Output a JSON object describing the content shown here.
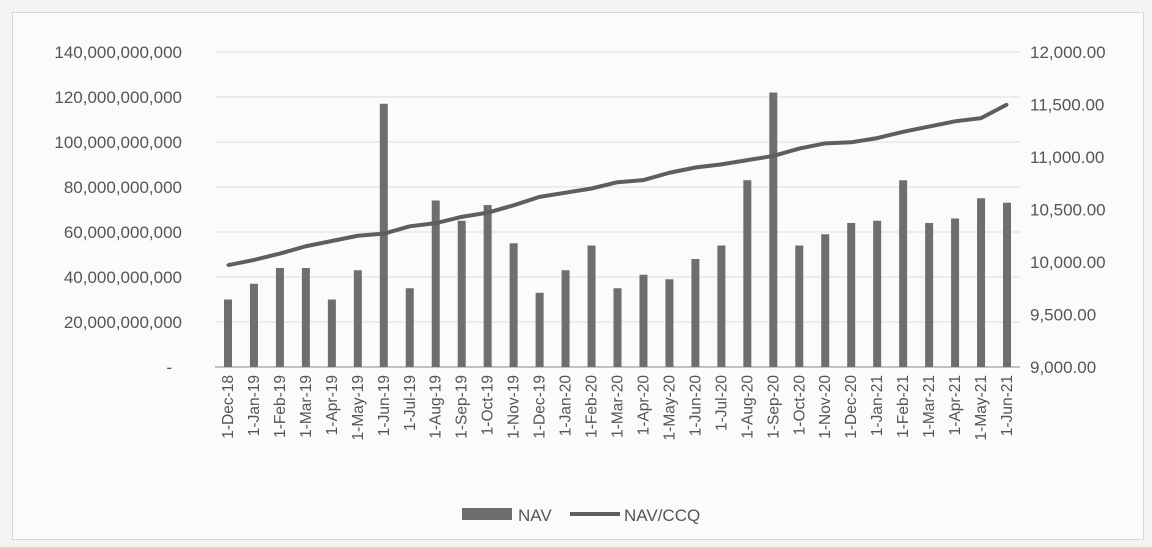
{
  "chart_data": {
    "type": "bar+line",
    "categories": [
      "1-Dec-18",
      "1-Jan-19",
      "1-Feb-19",
      "1-Mar-19",
      "1-Apr-19",
      "1-May-19",
      "1-Jun-19",
      "1-Jul-19",
      "1-Aug-19",
      "1-Sep-19",
      "1-Oct-19",
      "1-Nov-19",
      "1-Dec-19",
      "1-Jan-20",
      "1-Feb-20",
      "1-Mar-20",
      "1-Apr-20",
      "1-May-20",
      "1-Jun-20",
      "1-Jul-20",
      "1-Aug-20",
      "1-Sep-20",
      "1-Oct-20",
      "1-Nov-20",
      "1-Dec-20",
      "1-Jan-21",
      "1-Feb-21",
      "1-Mar-21",
      "1-Apr-21",
      "1-May-21",
      "1-Jun-21"
    ],
    "series": [
      {
        "name": "NAV",
        "type": "bar",
        "axis": "left",
        "color": "#6e6e6e",
        "values": [
          30000000000,
          37000000000,
          44000000000,
          44000000000,
          30000000000,
          43000000000,
          117000000000,
          35000000000,
          74000000000,
          65000000000,
          72000000000,
          55000000000,
          33000000000,
          43000000000,
          54000000000,
          35000000000,
          41000000000,
          39000000000,
          48000000000,
          54000000000,
          83000000000,
          122000000000,
          54000000000,
          59000000000,
          64000000000,
          65000000000,
          83000000000,
          64000000000,
          66000000000,
          75000000000,
          73000000000
        ]
      },
      {
        "name": "NAV/CCQ",
        "type": "line",
        "axis": "right",
        "color": "#5e5e5e",
        "values": [
          9970,
          10020,
          10080,
          10150,
          10200,
          10250,
          10270,
          10340,
          10370,
          10430,
          10470,
          10540,
          10620,
          10660,
          10700,
          10760,
          10780,
          10850,
          10900,
          10930,
          10970,
          11010,
          11080,
          11130,
          11140,
          11180,
          11240,
          11290,
          11340,
          11370,
          11500
        ]
      }
    ],
    "left_axis": {
      "ylim": [
        0,
        140000000000
      ],
      "ticks": [
        "-",
        "20,000,000,000",
        "40,000,000,000",
        "60,000,000,000",
        "80,000,000,000",
        "100,000,000,000",
        "120,000,000,000",
        "140,000,000,000"
      ]
    },
    "right_axis": {
      "ylim": [
        9000,
        12000
      ],
      "ticks": [
        "9,000.00",
        "9,500.00",
        "10,000.00",
        "10,500.00",
        "11,000.00",
        "11,500.00",
        "12,000.00"
      ]
    },
    "grid": true,
    "legend_position": "bottom"
  }
}
